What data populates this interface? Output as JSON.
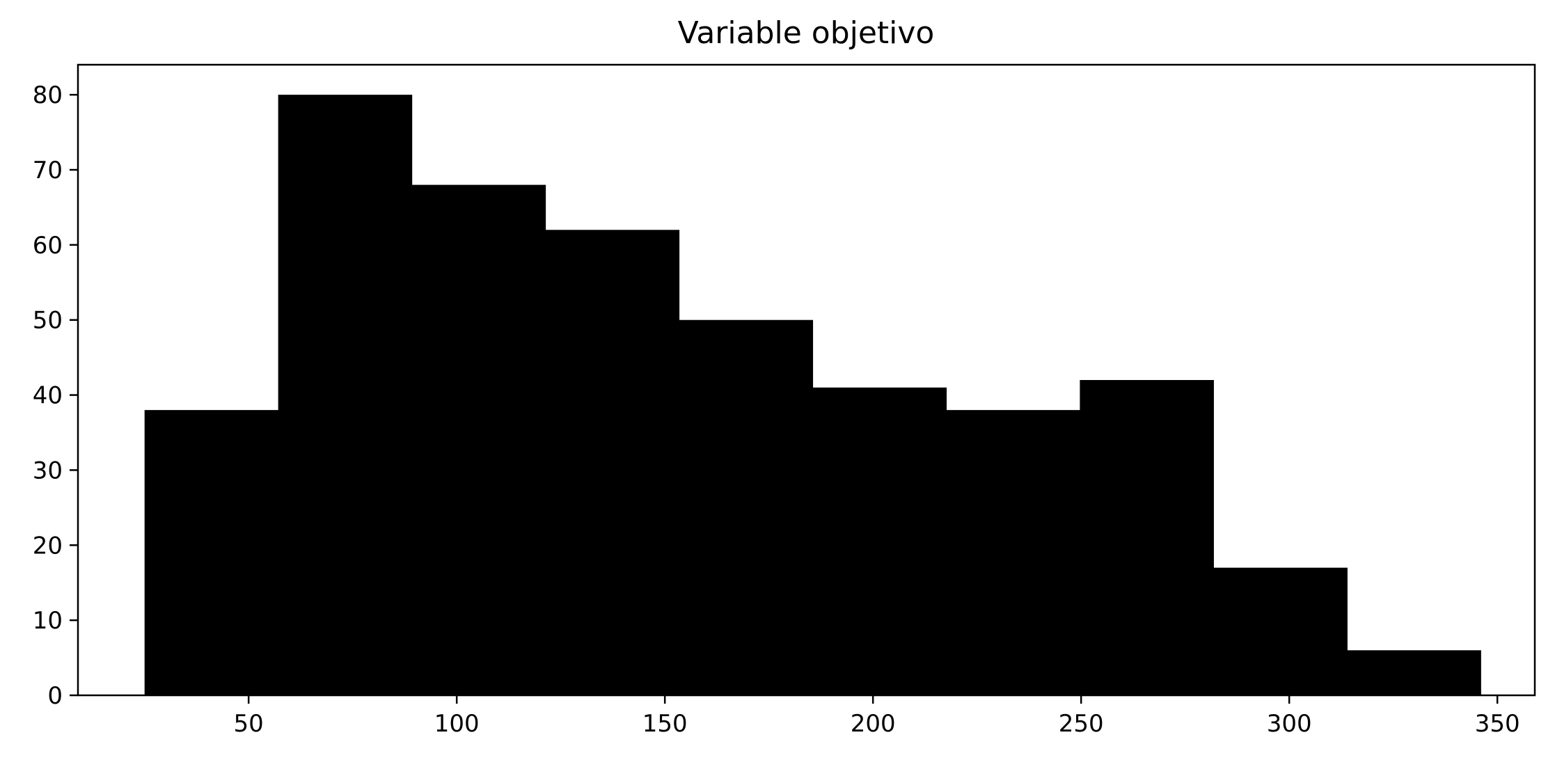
{
  "chart_data": {
    "type": "bar",
    "subtype": "histogram",
    "title": "Variable objetivo",
    "xlabel": "",
    "ylabel": "",
    "bin_edges": [
      25,
      57.1,
      89.2,
      121.3,
      153.4,
      185.5,
      217.6,
      249.7,
      281.8,
      313.9,
      346
    ],
    "values": [
      38,
      80,
      68,
      62,
      50,
      41,
      38,
      42,
      17,
      6
    ],
    "xlim": [
      9,
      359
    ],
    "ylim": [
      0,
      84
    ],
    "xticks": [
      50,
      100,
      150,
      200,
      250,
      300,
      350
    ],
    "yticks": [
      0,
      10,
      20,
      30,
      40,
      50,
      60,
      70,
      80
    ],
    "bar_color": "#000000",
    "grid": false,
    "legend": "none"
  }
}
